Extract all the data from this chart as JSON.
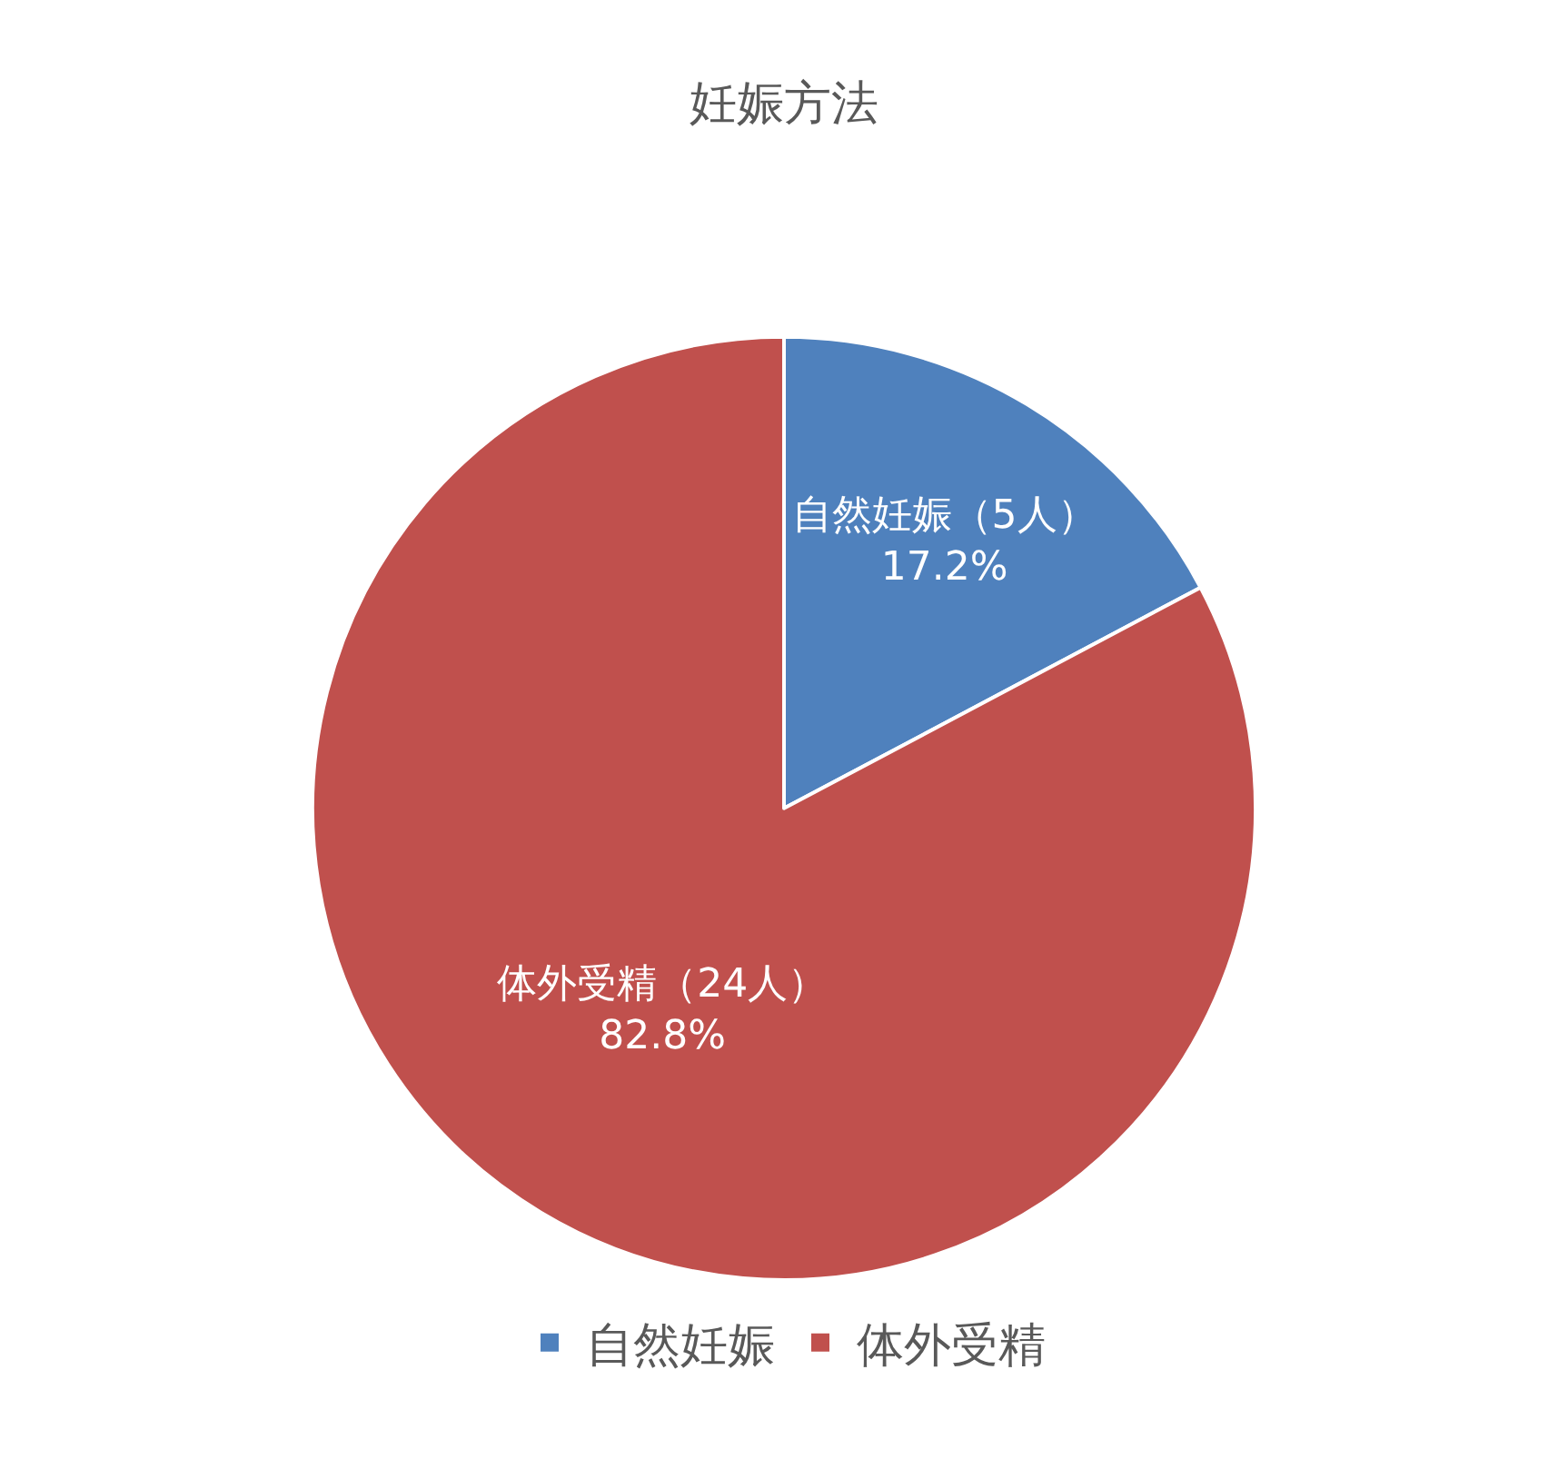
{
  "chart_data": {
    "type": "pie",
    "title": "妊娠方法",
    "categories": [
      "自然妊娠",
      "体外受精"
    ],
    "values": [
      5,
      24
    ],
    "colors": [
      "#4f81bd",
      "#c0504d"
    ],
    "value_labels": [
      "自然妊娠（5人）\n17.2%",
      "体外受精（24人）\n82.8%"
    ],
    "legend": "bottom"
  }
}
